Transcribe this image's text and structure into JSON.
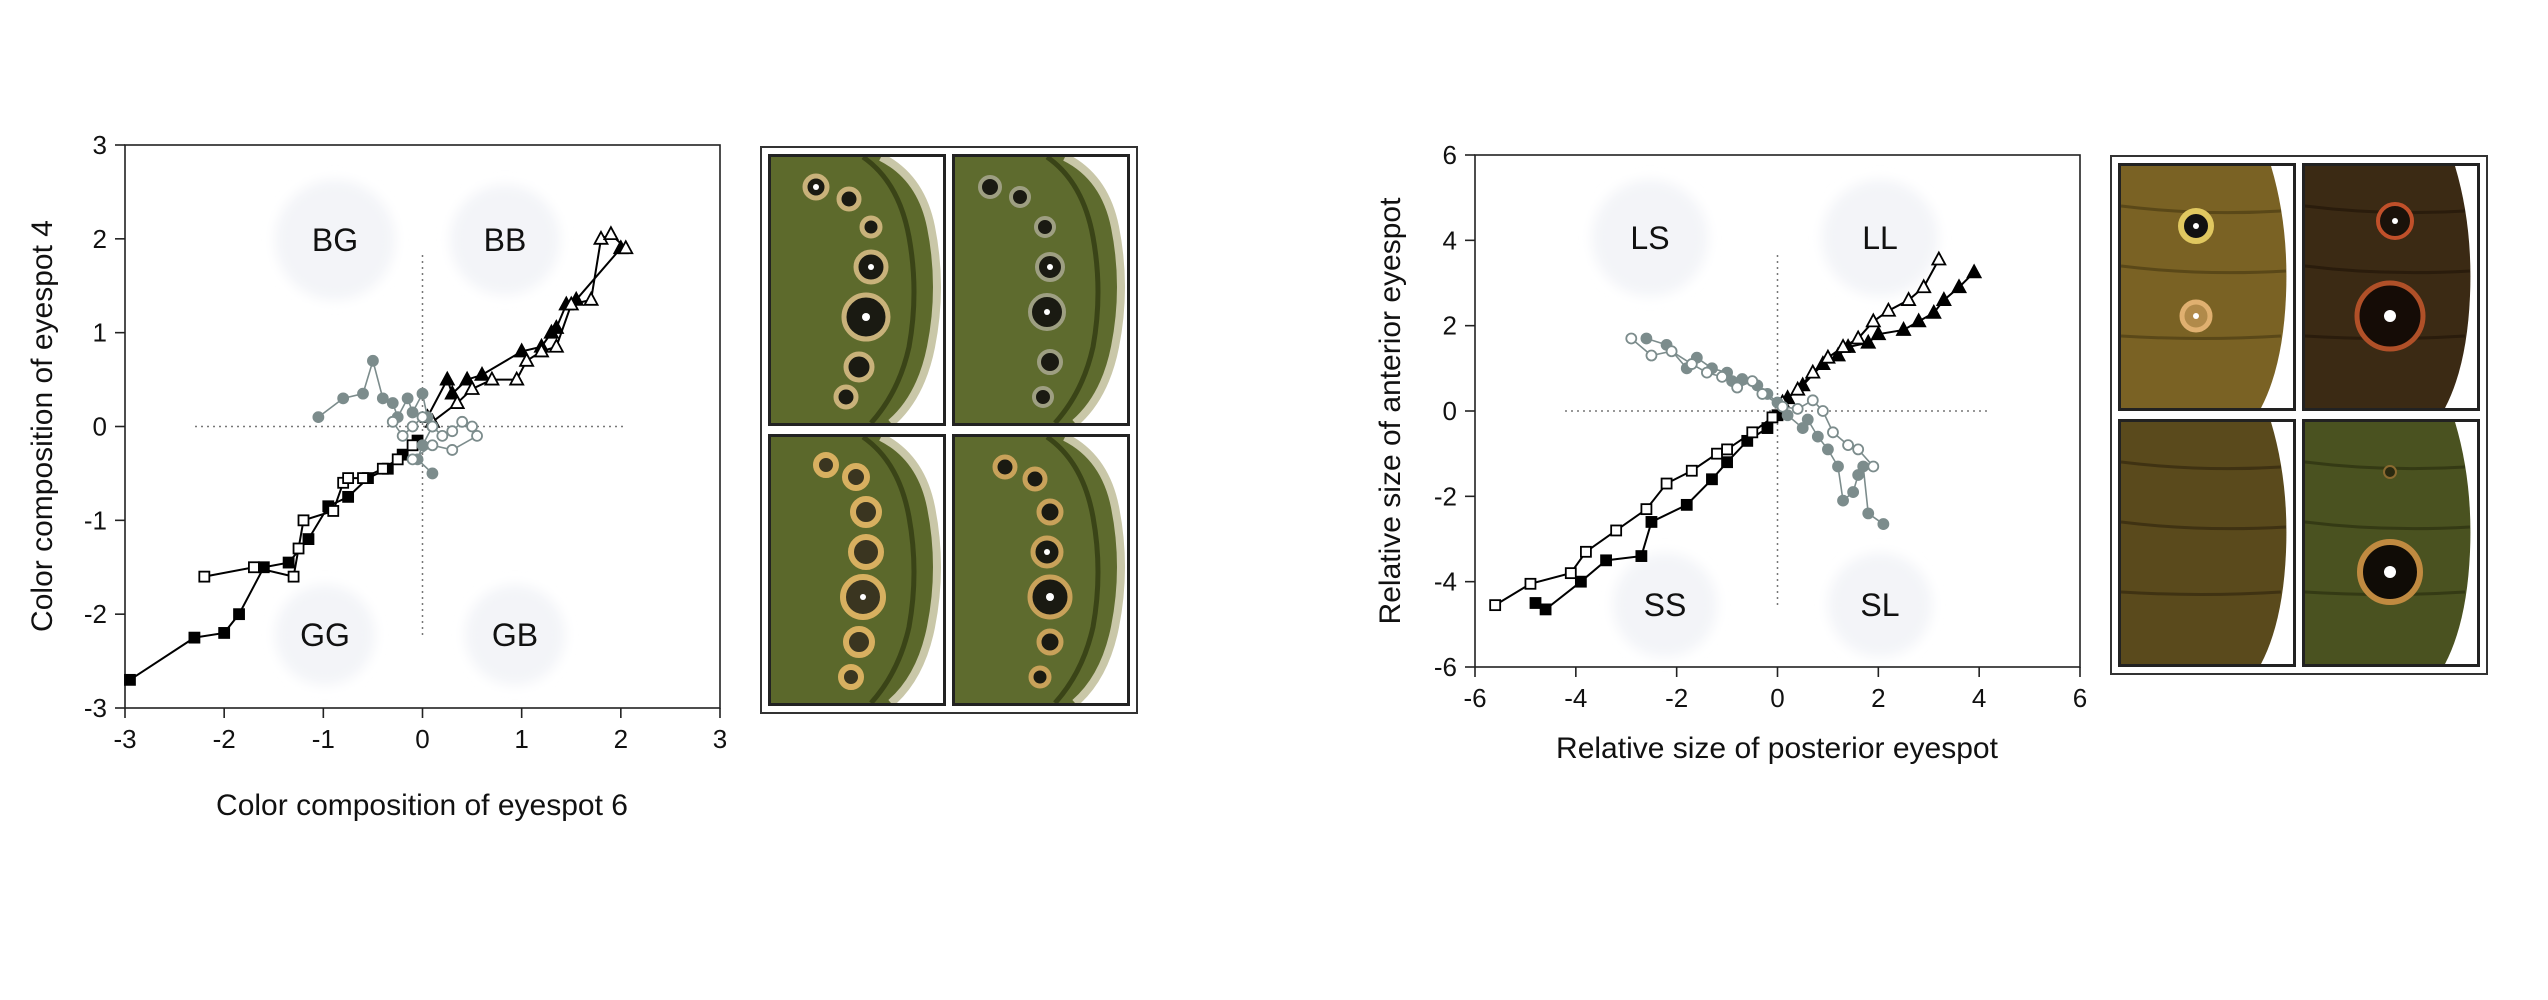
{
  "chart_data": [
    {
      "type": "scatter",
      "title": "",
      "xlabel": "Color composition of eyespot 6",
      "ylabel": "Color composition of eyespot 4",
      "xlim": [
        -3,
        3
      ],
      "ylim": [
        -3,
        3
      ],
      "xticks": [
        "-3",
        "-2",
        "-1",
        "0",
        "1",
        "2",
        "3"
      ],
      "yticks": [
        "3",
        "2",
        "1",
        "0",
        "-1",
        "-2",
        "-3"
      ],
      "grid": false,
      "quadrant_labels": [
        "BG",
        "BB",
        "GG",
        "GB"
      ],
      "series": [
        {
          "marker": "filled-square",
          "color": "#000000",
          "x": [
            -2.95,
            -2.3,
            -2.0,
            -1.85,
            -1.6,
            -1.35,
            -1.15,
            -0.95,
            -0.75,
            -0.55,
            -0.35,
            -0.2,
            -0.05
          ],
          "y": [
            -2.7,
            -2.25,
            -2.2,
            -2.0,
            -1.5,
            -1.45,
            -1.2,
            -0.85,
            -0.75,
            -0.55,
            -0.45,
            -0.3,
            -0.15
          ]
        },
        {
          "marker": "open-square",
          "color": "#000000",
          "x": [
            -2.2,
            -1.7,
            -1.3,
            -1.25,
            -1.2,
            -0.9,
            -0.8,
            -0.75,
            -0.6,
            -0.4,
            -0.25,
            -0.1
          ],
          "y": [
            -1.6,
            -1.5,
            -1.6,
            -1.3,
            -1.0,
            -0.9,
            -0.6,
            -0.55,
            -0.55,
            -0.45,
            -0.35,
            -0.2
          ]
        },
        {
          "marker": "filled-triangle",
          "color": "#000000",
          "x": [
            0.05,
            0.25,
            0.3,
            0.45,
            0.6,
            1.0,
            1.2,
            1.3,
            1.35,
            1.45,
            1.55,
            2.0
          ],
          "y": [
            0.1,
            0.5,
            0.35,
            0.5,
            0.55,
            0.8,
            0.85,
            1.0,
            1.05,
            1.3,
            1.35,
            1.9
          ]
        },
        {
          "marker": "open-triangle",
          "color": "#000000",
          "x": [
            0.1,
            0.35,
            0.5,
            0.7,
            0.95,
            1.05,
            1.2,
            1.35,
            1.5,
            1.7,
            1.8,
            1.9,
            2.05
          ],
          "y": [
            0.05,
            0.25,
            0.4,
            0.5,
            0.5,
            0.7,
            0.8,
            0.85,
            1.3,
            1.35,
            2.0,
            2.05,
            1.9
          ]
        },
        {
          "marker": "filled-circle",
          "color": "#7c8c8c",
          "x": [
            -1.05,
            -0.8,
            -0.6,
            -0.5,
            -0.4,
            -0.3,
            -0.25,
            -0.15,
            -0.1,
            0.0,
            0.05,
            0.1,
            0.0,
            -0.05,
            0.1
          ],
          "y": [
            0.1,
            0.3,
            0.35,
            0.7,
            0.3,
            0.25,
            0.1,
            0.3,
            0.15,
            0.35,
            0.1,
            0.0,
            -0.2,
            -0.35,
            -0.5
          ]
        },
        {
          "marker": "open-circle",
          "color": "#7c8c8c",
          "x": [
            -0.3,
            -0.2,
            -0.1,
            0.0,
            0.1,
            0.2,
            0.3,
            0.4,
            0.5,
            0.55,
            0.3,
            0.1,
            -0.1
          ],
          "y": [
            0.05,
            -0.1,
            0.0,
            0.1,
            0.0,
            -0.1,
            -0.05,
            0.05,
            0.0,
            -0.1,
            -0.25,
            -0.2,
            -0.35
          ]
        }
      ]
    },
    {
      "type": "scatter",
      "title": "",
      "xlabel": "Relative size of posterior eyespot",
      "ylabel": "Relative size of anterior eyespot",
      "xlim": [
        -6,
        6
      ],
      "ylim": [
        -6,
        6
      ],
      "xticks": [
        "-6",
        "-4",
        "-2",
        "0",
        "2",
        "4",
        "6"
      ],
      "yticks": [
        "6",
        "4",
        "2",
        "0",
        "-2",
        "-4",
        "-6"
      ],
      "grid": false,
      "quadrant_labels": [
        "LS",
        "LL",
        "SS",
        "SL"
      ],
      "series": [
        {
          "marker": "filled-square",
          "color": "#000000",
          "x": [
            -4.8,
            -4.6,
            -3.9,
            -3.4,
            -2.7,
            -2.5,
            -1.8,
            -1.3,
            -1.0,
            -0.6,
            -0.2,
            0.0
          ],
          "y": [
            -4.5,
            -4.65,
            -4.0,
            -3.5,
            -3.4,
            -2.6,
            -2.2,
            -1.6,
            -1.2,
            -0.7,
            -0.4,
            -0.1
          ]
        },
        {
          "marker": "open-square",
          "color": "#000000",
          "x": [
            -5.6,
            -4.9,
            -4.1,
            -3.8,
            -3.2,
            -2.6,
            -2.2,
            -1.7,
            -1.2,
            -1.0,
            -0.5,
            -0.1
          ],
          "y": [
            -4.55,
            -4.05,
            -3.8,
            -3.3,
            -2.8,
            -2.3,
            -1.7,
            -1.4,
            -1.0,
            -0.9,
            -0.5,
            -0.15
          ]
        },
        {
          "marker": "filled-triangle",
          "color": "#000000",
          "x": [
            0.2,
            0.5,
            0.9,
            1.2,
            1.4,
            1.8,
            2.0,
            2.5,
            2.8,
            3.1,
            3.3,
            3.6,
            3.9
          ],
          "y": [
            0.3,
            0.6,
            1.1,
            1.3,
            1.5,
            1.6,
            1.8,
            1.9,
            2.1,
            2.3,
            2.6,
            2.9,
            3.25
          ]
        },
        {
          "marker": "open-triangle",
          "color": "#000000",
          "x": [
            0.1,
            0.4,
            0.7,
            1.0,
            1.3,
            1.6,
            1.9,
            2.2,
            2.6,
            2.9,
            3.2
          ],
          "y": [
            0.2,
            0.5,
            0.9,
            1.25,
            1.5,
            1.7,
            2.1,
            2.35,
            2.6,
            2.9,
            3.55
          ]
        },
        {
          "marker": "filled-circle",
          "color": "#7c8c8c",
          "x": [
            -2.6,
            -2.2,
            -1.8,
            -1.6,
            -1.3,
            -1.0,
            -0.9,
            -0.7,
            -0.4,
            -0.2,
            0.0
          ],
          "y": [
            1.7,
            1.55,
            1.0,
            1.25,
            1.0,
            0.9,
            0.7,
            0.75,
            0.6,
            0.4,
            0.2
          ]
        },
        {
          "marker": "filled-circle",
          "color": "#7c8c8c",
          "x": [
            0.2,
            0.5,
            0.6,
            0.8,
            1.0,
            1.2,
            1.3,
            1.5,
            1.6,
            1.7,
            1.8,
            2.1
          ],
          "y": [
            -0.1,
            -0.4,
            -0.2,
            -0.6,
            -0.9,
            -1.3,
            -2.1,
            -1.9,
            -1.5,
            -1.3,
            -2.4,
            -2.65
          ]
        },
        {
          "marker": "open-circle",
          "color": "#7c8c8c",
          "x": [
            -2.9,
            -2.5,
            -2.1,
            -1.7,
            -1.4,
            -1.1,
            -0.8,
            -0.5,
            -0.3,
            0.1,
            0.4,
            0.7,
            0.9,
            1.1,
            1.4,
            1.6,
            1.9
          ],
          "y": [
            1.7,
            1.3,
            1.4,
            1.1,
            0.9,
            0.8,
            0.55,
            0.7,
            0.4,
            0.1,
            0.05,
            0.25,
            0.0,
            -0.5,
            -0.8,
            -0.9,
            -1.3
          ]
        }
      ]
    }
  ]
}
